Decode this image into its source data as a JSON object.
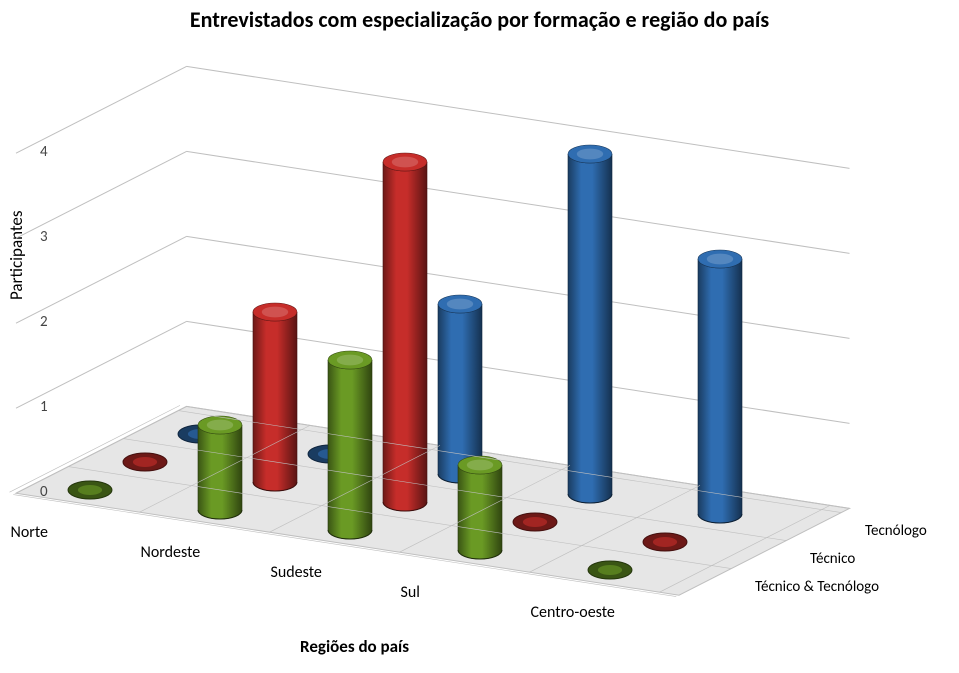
{
  "chart": {
    "type": "3d-cylinder-bar",
    "title": "Entrevistados com especialização por formação e região do país",
    "title_fontsize": 22,
    "title_fontweight": "bold",
    "ylabel": "Participantes",
    "ylabel_fontsize": 17,
    "xlabel": "Regiões do país",
    "xlabel_fontsize": 17,
    "categories": [
      "Norte",
      "Nordeste",
      "Sudeste",
      "Sul",
      "Centro-oeste"
    ],
    "series": [
      {
        "name": "Técnico & Tecnólogo",
        "color": "#6a9a24",
        "colorDark": "#4a6c18",
        "values": [
          0,
          1,
          2,
          1,
          0
        ]
      },
      {
        "name": "Técnico",
        "color": "#c62d2a",
        "colorDark": "#8a1f1d",
        "values": [
          0,
          2,
          4,
          0,
          0
        ]
      },
      {
        "name": "Tecnólogo",
        "color": "#2f6db1",
        "colorDark": "#1f4a78",
        "values": [
          0,
          0,
          2,
          4,
          3
        ]
      }
    ],
    "yticks": [
      0,
      1,
      2,
      3,
      4
    ],
    "ylim": [
      0,
      4
    ],
    "grid_color": "#bfbfbf",
    "floor_color": "#e6e6e6",
    "floor_edge": "#bfbfbf",
    "wall_color": "#f7f7f7",
    "background_color": "#ffffff",
    "cylinder_rx": 22,
    "cylinder_ry": 9,
    "geom": {
      "origin_x": 90,
      "origin_y": 490,
      "cat_dx": 130,
      "cat_dy": 20,
      "series_dx": 55,
      "series_dy": -28,
      "unit_h": 85,
      "wall_top_y": 100
    }
  }
}
